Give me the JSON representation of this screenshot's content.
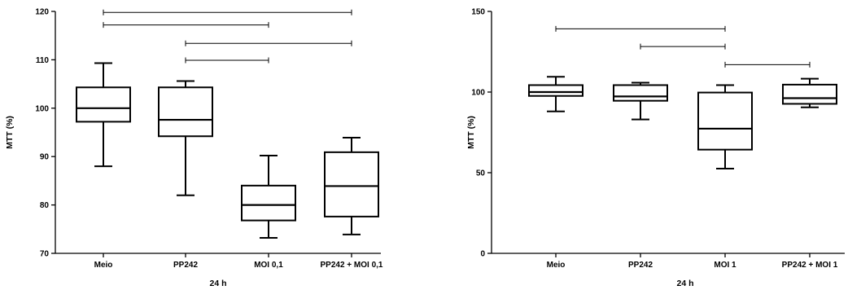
{
  "chart_data": [
    {
      "type": "box",
      "title": "",
      "xlabel": "24 h",
      "ylabel": "MTT (%)",
      "ylim": [
        70,
        120
      ],
      "yticks": [
        70,
        80,
        90,
        100,
        110,
        120
      ],
      "categories": [
        "Meio",
        "PP242",
        "MOI 0,1",
        "PP242 + MOI 0,1"
      ],
      "boxes": [
        {
          "min": 88,
          "q1": 97.2,
          "median": 100,
          "q3": 104.3,
          "max": 109.3
        },
        {
          "min": 82,
          "q1": 94.2,
          "median": 97.6,
          "q3": 104.3,
          "max": 105.6
        },
        {
          "min": 73.2,
          "q1": 76.8,
          "median": 80,
          "q3": 84,
          "max": 90.2
        },
        {
          "min": 73.9,
          "q1": 77.6,
          "median": 83.9,
          "q3": 90.9,
          "max": 93.9
        }
      ],
      "significance_brackets": [
        {
          "from": 0,
          "to": 3,
          "y": 119.8
        },
        {
          "from": 0,
          "to": 2,
          "y": 117.2
        },
        {
          "from": 1,
          "to": 3,
          "y": 113.4
        },
        {
          "from": 1,
          "to": 2,
          "y": 109.9
        }
      ],
      "grid": false,
      "legend": "none"
    },
    {
      "type": "box",
      "title": "",
      "xlabel": "24 h",
      "ylabel": "MTT (%)",
      "ylim": [
        0,
        150
      ],
      "yticks": [
        0,
        50,
        100,
        150
      ],
      "categories": [
        "Meio",
        "PP242",
        "MOI 1",
        "PP242 + MOI 1"
      ],
      "boxes": [
        {
          "min": 88,
          "q1": 97.6,
          "median": 100,
          "q3": 104.3,
          "max": 109.5
        },
        {
          "min": 83,
          "q1": 94.6,
          "median": 97.3,
          "q3": 104.3,
          "max": 105.8
        },
        {
          "min": 52.5,
          "q1": 64.3,
          "median": 77.3,
          "q3": 99.7,
          "max": 104.3
        },
        {
          "min": 90.5,
          "q1": 92.7,
          "median": 96.2,
          "q3": 104.6,
          "max": 108.3
        }
      ],
      "significance_brackets": [
        {
          "from": 0,
          "to": 2,
          "y": 139.2
        },
        {
          "from": 1,
          "to": 2,
          "y": 128.2
        },
        {
          "from": 2,
          "to": 3,
          "y": 117
        }
      ],
      "grid": false,
      "legend": "none"
    }
  ]
}
